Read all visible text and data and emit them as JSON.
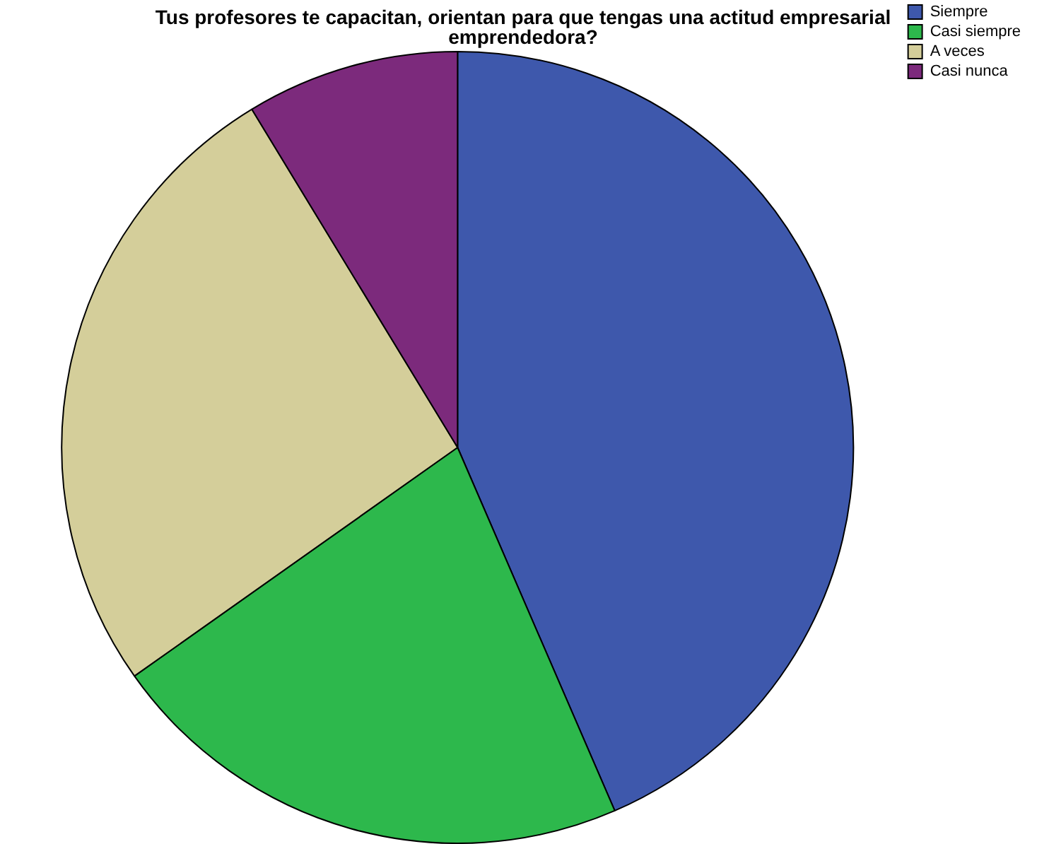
{
  "chart_data": {
    "type": "pie",
    "title": "Tus profesores te capacitan, orientan para que tengas una actitud empresarial emprendedora?",
    "categories": [
      "Siempre",
      "Casi siempre",
      "A veces",
      "Casi nunca"
    ],
    "values": [
      43.5,
      21.7,
      26.1,
      8.7
    ],
    "colors": [
      "#3e58ac",
      "#2db84c",
      "#d4ce9a",
      "#7c2a7c"
    ],
    "legend": "top right"
  }
}
